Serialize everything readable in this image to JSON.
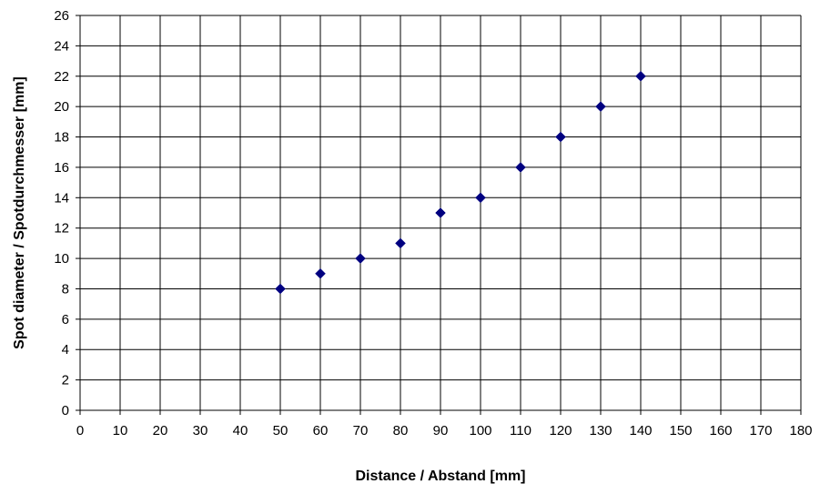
{
  "chart_data": {
    "type": "scatter",
    "title": "",
    "xlabel": "Distance / Abstand [mm]",
    "ylabel": "Spot diameter / Spotdurchmesser [mm]",
    "xlim": [
      0,
      180
    ],
    "ylim": [
      0,
      26
    ],
    "x_ticks": [
      "0",
      "10",
      "20",
      "30",
      "40",
      "50",
      "60",
      "70",
      "80",
      "90",
      "100",
      "110",
      "120",
      "130",
      "140",
      "150",
      "160",
      "170",
      "180"
    ],
    "y_ticks": [
      "0",
      "2",
      "4",
      "6",
      "8",
      "10",
      "12",
      "14",
      "16",
      "18",
      "20",
      "22",
      "24",
      "26"
    ],
    "grid": true,
    "legend": "none",
    "marker": "diamond",
    "marker_color": "#000080",
    "series": [
      {
        "x": [
          50,
          60,
          70,
          80,
          90,
          100,
          110,
          120,
          130,
          140
        ],
        "y": [
          8,
          9,
          10,
          11,
          13,
          14,
          16,
          18,
          20,
          22
        ]
      }
    ]
  }
}
